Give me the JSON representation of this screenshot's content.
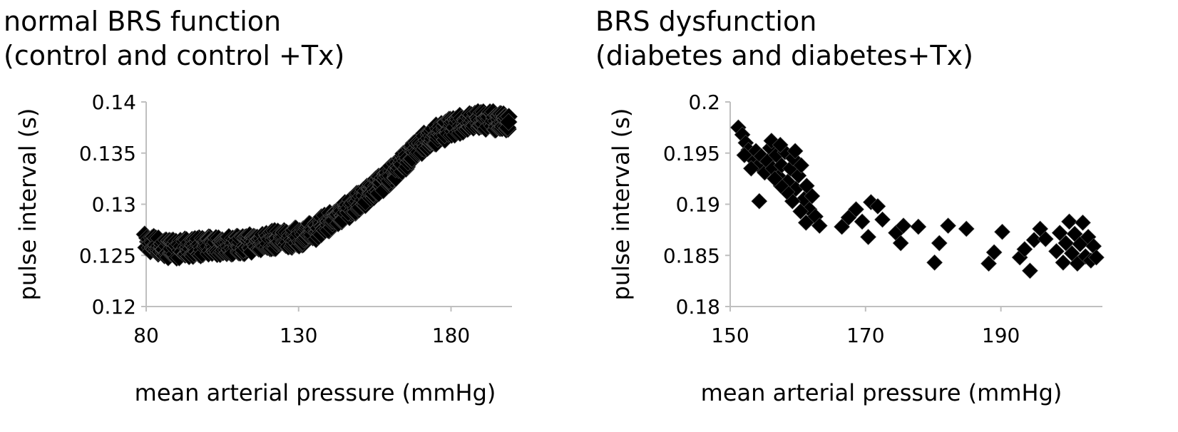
{
  "chart_data": [
    {
      "type": "scatter",
      "title": "normal BRS function",
      "subtitle": "(control and control +Tx)",
      "xlabel": "mean arterial pressure (mmHg)",
      "ylabel": "pulse interval (s)",
      "xlim": [
        80,
        200
      ],
      "ylim": [
        0.12,
        0.14
      ],
      "xticks": [
        "80",
        "130",
        "180"
      ],
      "xtick_values": [
        80,
        130,
        180
      ],
      "yticks": [
        "0.14",
        "0.135",
        "0.13",
        "0.125",
        "0.12"
      ],
      "ytick_values": [
        0.14,
        0.135,
        0.13,
        0.125,
        0.12
      ],
      "grid": false,
      "marker": "diamond",
      "marker_color": "#000000",
      "series": [
        {
          "curve": [
            [
              80,
              0.1263
            ],
            [
              85,
              0.1258
            ],
            [
              90,
              0.1256
            ],
            [
              95,
              0.1258
            ],
            [
              100,
              0.1259
            ],
            [
              105,
              0.126
            ],
            [
              110,
              0.126
            ],
            [
              115,
              0.1262
            ],
            [
              120,
              0.1265
            ],
            [
              125,
              0.1266
            ],
            [
              130,
              0.1268
            ],
            [
              135,
              0.1274
            ],
            [
              140,
              0.1283
            ],
            [
              145,
              0.1293
            ],
            [
              150,
              0.1304
            ],
            [
              155,
              0.1315
            ],
            [
              160,
              0.1328
            ],
            [
              165,
              0.1343
            ],
            [
              170,
              0.1358
            ],
            [
              175,
              0.1368
            ],
            [
              180,
              0.1375
            ],
            [
              185,
              0.138
            ],
            [
              190,
              0.1383
            ],
            [
              195,
              0.1381
            ],
            [
              199,
              0.1378
            ]
          ],
          "spread": 0.0009
        }
      ]
    },
    {
      "type": "scatter",
      "title": "BRS dysfunction",
      "subtitle": "(diabetes and diabetes+Tx)",
      "xlabel": "mean arterial pressure (mmHg)",
      "ylabel": "pulse interval (s)",
      "xlim": [
        150,
        205
      ],
      "ylim": [
        0.18,
        0.2
      ],
      "xticks": [
        "150",
        "170",
        "190"
      ],
      "xtick_values": [
        150,
        170,
        190
      ],
      "yticks": [
        "0.2",
        "0.195",
        "0.19",
        "0.185",
        "0.18"
      ],
      "ytick_values": [
        0.2,
        0.195,
        0.19,
        0.185,
        0.18
      ],
      "grid": false,
      "marker": "diamond",
      "marker_color": "#000000",
      "series": [
        {
          "points": [
            [
              151.2,
              0.1975
            ],
            [
              151.8,
              0.1968
            ],
            [
              152.3,
              0.196
            ],
            [
              152.7,
              0.1953
            ],
            [
              153.2,
              0.1945
            ],
            [
              153.8,
              0.1952
            ],
            [
              154.2,
              0.1938
            ],
            [
              154.6,
              0.1947
            ],
            [
              155.1,
              0.1931
            ],
            [
              155.5,
              0.1942
            ],
            [
              155.9,
              0.1955
            ],
            [
              156.3,
              0.1935
            ],
            [
              156.8,
              0.1948
            ],
            [
              157.2,
              0.1927
            ],
            [
              157.6,
              0.1938
            ],
            [
              158.1,
              0.1951
            ],
            [
              158.5,
              0.1922
            ],
            [
              158.9,
              0.1935
            ],
            [
              159.3,
              0.1945
            ],
            [
              159.7,
              0.1915
            ],
            [
              160.1,
              0.1928
            ],
            [
              160.5,
              0.1938
            ],
            [
              160.9,
              0.1905
            ],
            [
              161.3,
              0.1918
            ],
            [
              161.7,
              0.1895
            ],
            [
              162.1,
              0.1908
            ],
            [
              162.6,
              0.1888
            ],
            [
              161.2,
              0.1882
            ],
            [
              160.4,
              0.1893
            ],
            [
              159.2,
              0.1903
            ],
            [
              158.4,
              0.1912
            ],
            [
              157.5,
              0.1918
            ],
            [
              156.6,
              0.1925
            ],
            [
              153.1,
              0.1935
            ],
            [
              152.1,
              0.1948
            ],
            [
              154.3,
              0.1903
            ],
            [
              156.1,
              0.1962
            ],
            [
              157.4,
              0.1958
            ],
            [
              159.6,
              0.1952
            ],
            [
              163.2,
              0.1879
            ],
            [
              166.5,
              0.1878
            ],
            [
              167.5,
              0.1887
            ],
            [
              168.6,
              0.1895
            ],
            [
              169.5,
              0.1883
            ],
            [
              170.4,
              0.1868
            ],
            [
              170.8,
              0.1902
            ],
            [
              171.8,
              0.1898
            ],
            [
              172.5,
              0.1885
            ],
            [
              174.5,
              0.1872
            ],
            [
              175.2,
              0.1862
            ],
            [
              175.6,
              0.1879
            ],
            [
              177.8,
              0.1878
            ],
            [
              180.2,
              0.1843
            ],
            [
              180.9,
              0.1862
            ],
            [
              182.2,
              0.1879
            ],
            [
              184.9,
              0.1876
            ],
            [
              188.2,
              0.1842
            ],
            [
              189.0,
              0.1853
            ],
            [
              190.2,
              0.1873
            ],
            [
              192.8,
              0.1848
            ],
            [
              193.5,
              0.1856
            ],
            [
              194.3,
              0.1835
            ],
            [
              194.9,
              0.1865
            ],
            [
              195.8,
              0.1876
            ],
            [
              196.6,
              0.1866
            ],
            [
              198.2,
              0.1854
            ],
            [
              198.7,
              0.1872
            ],
            [
              199.2,
              0.1843
            ],
            [
              199.6,
              0.1862
            ],
            [
              200.1,
              0.1883
            ],
            [
              200.5,
              0.1852
            ],
            [
              200.9,
              0.1871
            ],
            [
              201.3,
              0.1842
            ],
            [
              201.7,
              0.1861
            ],
            [
              202.1,
              0.1882
            ],
            [
              202.5,
              0.1849
            ],
            [
              202.9,
              0.1868
            ],
            [
              203.3,
              0.1845
            ],
            [
              203.7,
              0.1859
            ],
            [
              204.1,
              0.1848
            ]
          ]
        }
      ]
    }
  ]
}
